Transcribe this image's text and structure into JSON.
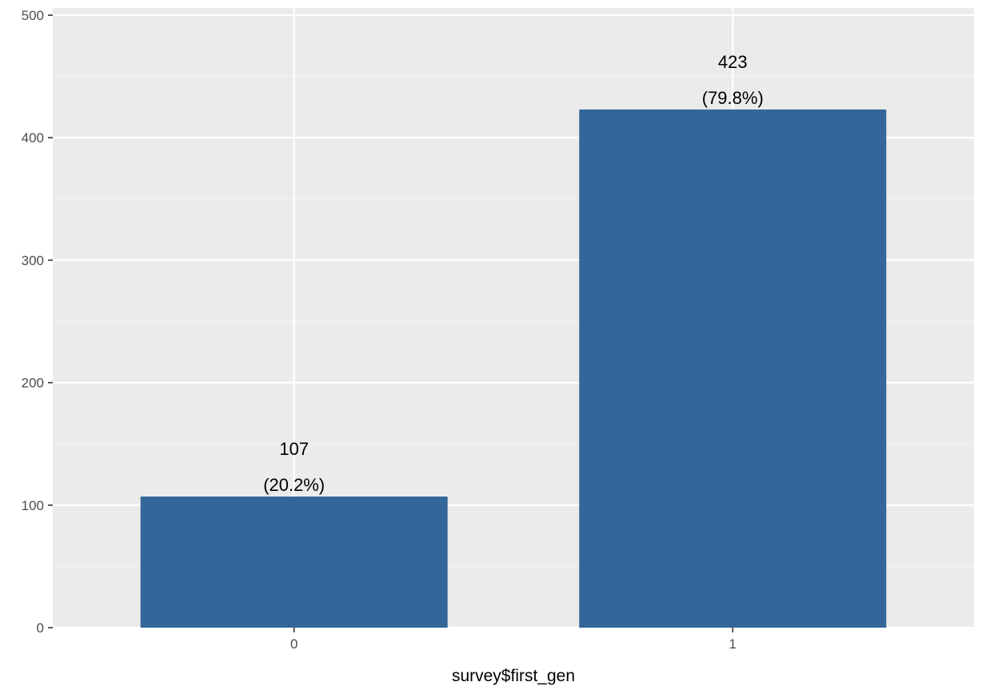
{
  "chart_data": {
    "type": "bar",
    "categories": [
      "0",
      "1"
    ],
    "values": [
      107,
      423
    ],
    "data_labels": [
      {
        "count": "107",
        "percent": "(20.2%)"
      },
      {
        "count": "423",
        "percent": "(79.8%)"
      }
    ],
    "xlabel": "survey$first_gen",
    "ylabel": "",
    "ylim": [
      0,
      500
    ],
    "yticks": [
      0,
      100,
      200,
      300,
      400,
      500
    ],
    "grid": true,
    "colors": {
      "bar": "#336699",
      "panel": "#ebebeb",
      "grid_major": "#ffffff",
      "grid_minor": "#f5f5f5"
    }
  }
}
